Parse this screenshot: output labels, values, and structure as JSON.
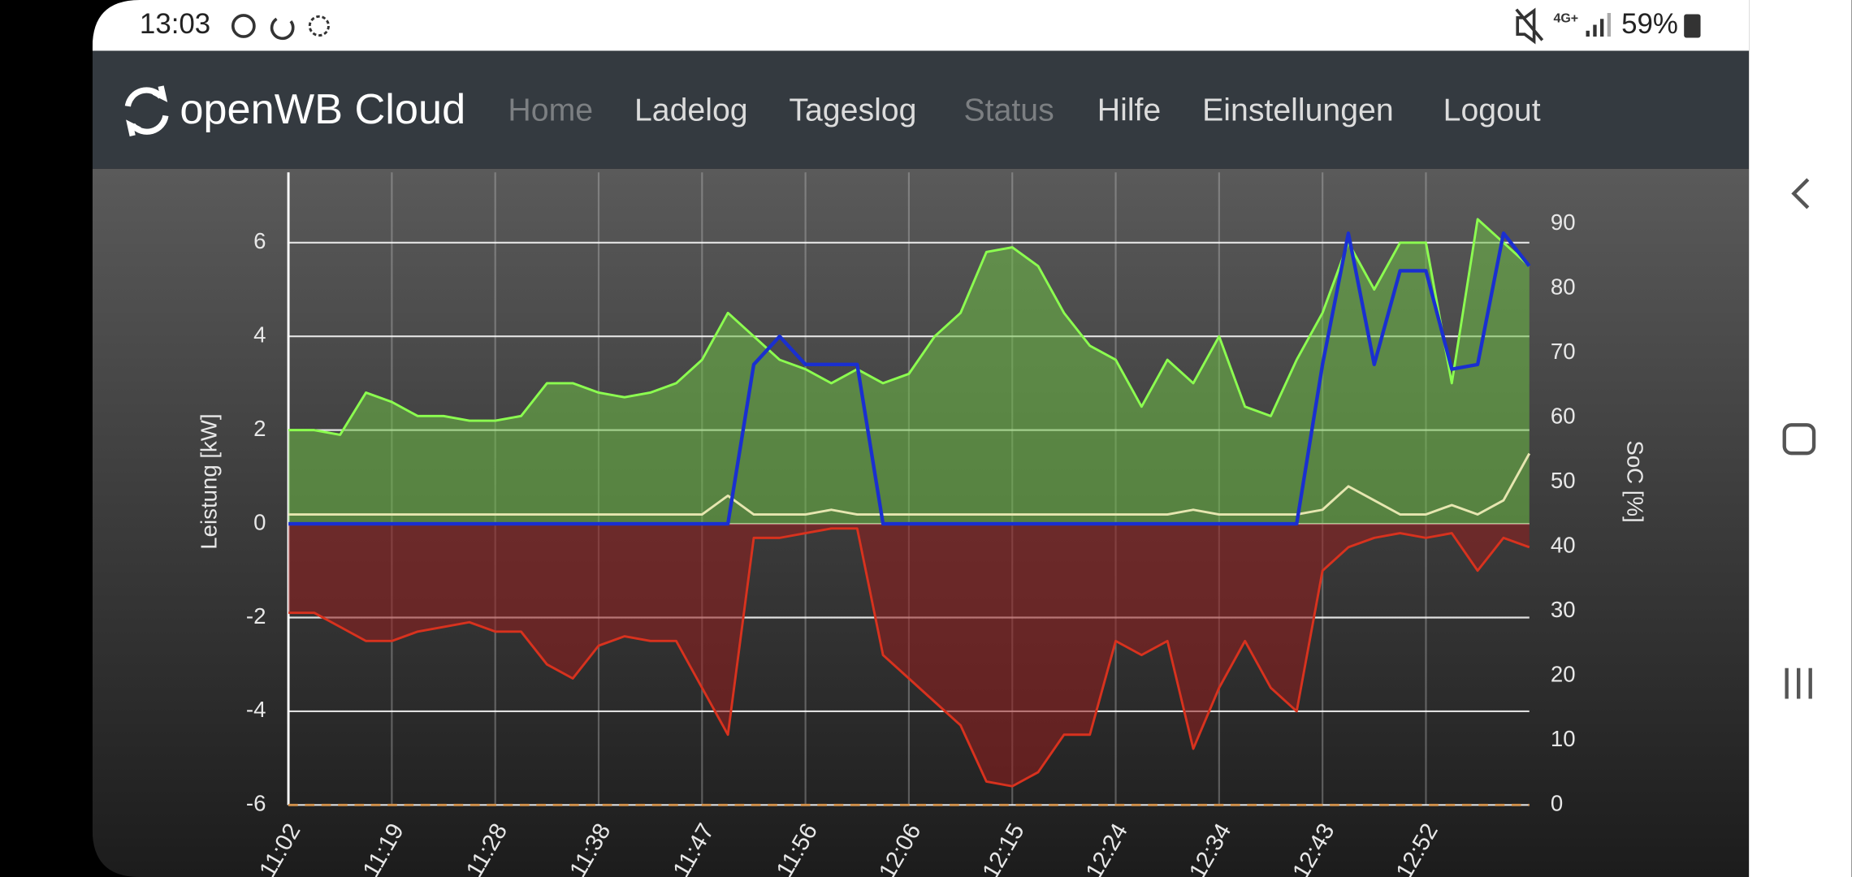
{
  "status_bar": {
    "time": "13:03",
    "network": "4G+",
    "battery": "59%"
  },
  "nav": {
    "brand": "openWB Cloud",
    "links": [
      "Home",
      "Ladelog",
      "Tageslog",
      "Status",
      "Hilfe",
      "Einstellungen",
      "Logout"
    ]
  },
  "chart_data": {
    "type": "line",
    "ylabel": "Leistung [kW]",
    "y2label": "SoC [%]",
    "xlim": [
      0,
      12
    ],
    "xticks": [
      {
        "value": 0,
        "label": "11:02"
      },
      {
        "value": 1,
        "label": "11:19"
      },
      {
        "value": 2,
        "label": "11:28"
      },
      {
        "value": 3,
        "label": "11:38"
      },
      {
        "value": 4,
        "label": "11:47"
      },
      {
        "value": 5,
        "label": "11:56"
      },
      {
        "value": 6,
        "label": "12:06"
      },
      {
        "value": 7,
        "label": "12:15"
      },
      {
        "value": 8,
        "label": "12:24"
      },
      {
        "value": 9,
        "label": "12:34"
      },
      {
        "value": 10,
        "label": "12:43"
      },
      {
        "value": 11,
        "label": "12:52"
      }
    ],
    "ylim": [
      -6,
      7.5
    ],
    "yticks": [
      -6,
      -4,
      -2,
      0,
      2,
      4,
      6
    ],
    "y2lim": [
      0,
      98
    ],
    "y2ticks": [
      0,
      10,
      20,
      30,
      40,
      50,
      60,
      70,
      80,
      90
    ],
    "grid": true,
    "x": [
      0,
      0.25,
      0.5,
      0.75,
      1,
      1.25,
      1.5,
      1.75,
      2,
      2.25,
      2.5,
      2.75,
      3,
      3.25,
      3.5,
      3.75,
      4,
      4.25,
      4.5,
      4.75,
      5,
      5.25,
      5.5,
      5.75,
      6,
      6.25,
      6.5,
      6.75,
      7,
      7.25,
      7.5,
      7.75,
      8,
      8.25,
      8.5,
      8.75,
      9,
      9.25,
      9.5,
      9.75,
      10,
      10.25,
      10.5,
      10.75,
      11,
      11.25,
      11.5,
      11.75,
      12
    ],
    "series": [
      {
        "color": "#8cff50",
        "fill": "rgba(110,190,70,0.55)",
        "values": [
          2.0,
          2.0,
          1.9,
          2.8,
          2.6,
          2.3,
          2.3,
          2.2,
          2.2,
          2.3,
          3.0,
          3.0,
          2.8,
          2.7,
          2.8,
          3.0,
          3.5,
          4.5,
          4.0,
          3.5,
          3.3,
          3.0,
          3.3,
          3.0,
          3.2,
          4.0,
          4.5,
          5.8,
          5.9,
          5.5,
          4.5,
          3.8,
          3.5,
          2.5,
          3.5,
          3.0,
          4.0,
          2.5,
          2.3,
          3.5,
          4.5,
          6.0,
          5.0,
          6.0,
          6.0,
          3.0,
          6.5,
          6.0,
          5.5
        ]
      },
      {
        "color": "#d8321e",
        "fill": "rgba(150,30,30,0.55)",
        "values": [
          -1.9,
          -1.9,
          -2.2,
          -2.5,
          -2.5,
          -2.3,
          -2.2,
          -2.1,
          -2.3,
          -2.3,
          -3.0,
          -3.3,
          -2.6,
          -2.4,
          -2.5,
          -2.5,
          -3.5,
          -4.5,
          -0.3,
          -0.3,
          -0.2,
          -0.1,
          -0.1,
          -2.8,
          -3.3,
          -3.8,
          -4.3,
          -5.5,
          -5.6,
          -5.3,
          -4.5,
          -4.5,
          -2.5,
          -2.8,
          -2.5,
          -4.8,
          -3.5,
          -2.5,
          -3.5,
          -4.0,
          -1.0,
          -0.5,
          -0.3,
          -0.2,
          -0.3,
          -0.2,
          -1.0,
          -0.3,
          -0.5
        ]
      },
      {
        "color": "#e6e6b0",
        "values": [
          0.2,
          0.2,
          0.2,
          0.2,
          0.2,
          0.2,
          0.2,
          0.2,
          0.2,
          0.2,
          0.2,
          0.2,
          0.2,
          0.2,
          0.2,
          0.2,
          0.2,
          0.6,
          0.2,
          0.2,
          0.2,
          0.3,
          0.2,
          0.2,
          0.2,
          0.2,
          0.2,
          0.2,
          0.2,
          0.2,
          0.2,
          0.2,
          0.2,
          0.2,
          0.2,
          0.3,
          0.2,
          0.2,
          0.2,
          0.2,
          0.3,
          0.8,
          0.5,
          0.2,
          0.2,
          0.4,
          0.2,
          0.5,
          1.5
        ]
      },
      {
        "color": "#1a2fd0",
        "values": [
          0,
          0,
          0,
          0,
          0,
          0,
          0,
          0,
          0,
          0,
          0,
          0,
          0,
          0,
          0,
          0,
          0,
          0,
          3.4,
          4.0,
          3.4,
          3.4,
          3.4,
          0,
          0,
          0,
          0,
          0,
          0,
          0,
          0,
          0,
          0,
          0,
          0,
          0,
          0,
          0,
          0,
          0,
          3.4,
          6.2,
          3.4,
          5.4,
          5.4,
          3.3,
          3.4,
          6.2,
          5.5
        ]
      },
      {
        "color": "#d2914b",
        "axis": "y2",
        "dash": true,
        "values": [
          0,
          0,
          0,
          0,
          0,
          0,
          0,
          0,
          0,
          0,
          0,
          0,
          0,
          0,
          0,
          0,
          0,
          0,
          0,
          0,
          0,
          0,
          0,
          0,
          0,
          0,
          0,
          0,
          0,
          0,
          0,
          0,
          0,
          0,
          0,
          0,
          0,
          0,
          0,
          0,
          0,
          0,
          0,
          0,
          0,
          0,
          0,
          0,
          0
        ]
      }
    ]
  }
}
